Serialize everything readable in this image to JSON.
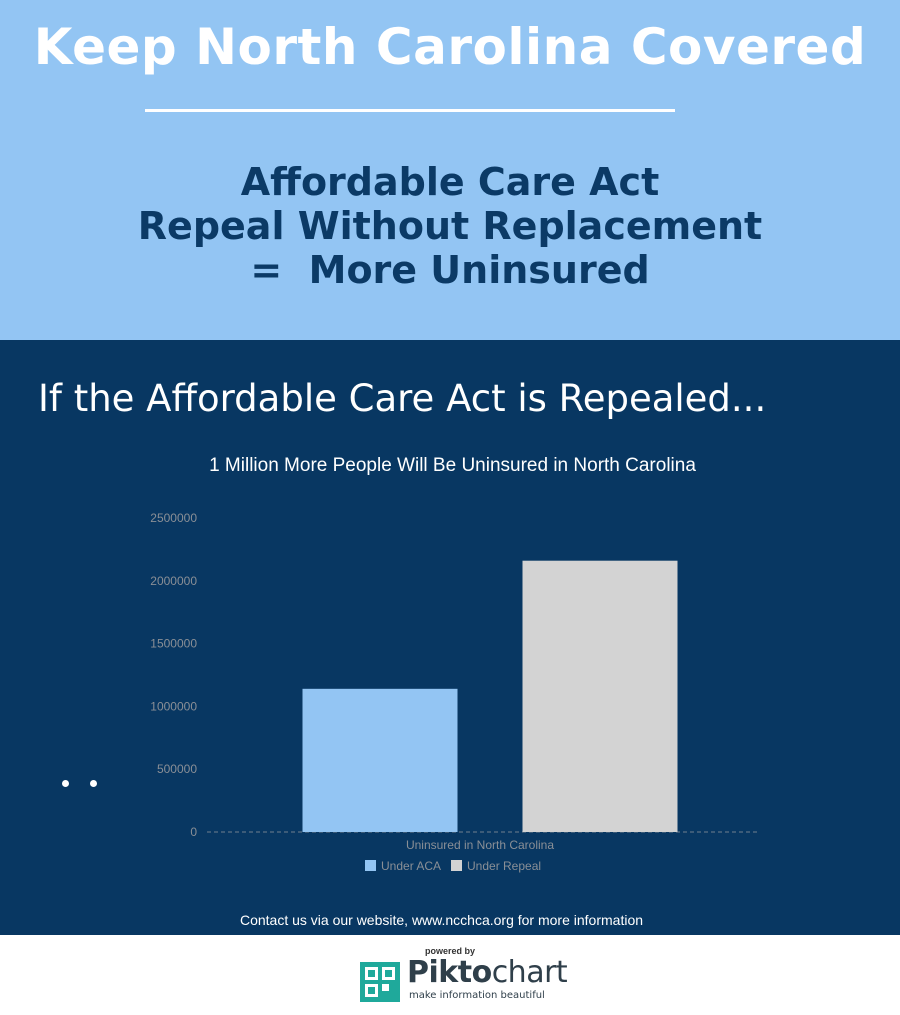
{
  "header": {
    "title": "Keep North Carolina Covered",
    "subtitle_lines": [
      "Affordable Care Act",
      "Repeal Without Replacement",
      "=  More Uninsured"
    ]
  },
  "section": {
    "heading": "If the Affordable Care Act is Repealed..."
  },
  "chart_data": {
    "type": "bar",
    "title": "1 Million More People Will Be Uninsured in North Carolina",
    "categories": [
      "Uninsured in North Carolina"
    ],
    "series": [
      {
        "name": "Under ACA",
        "values": [
          1140000
        ],
        "color": "#93c5f3"
      },
      {
        "name": "Under Repeal",
        "values": [
          2160000
        ],
        "color": "#d3d3d3"
      }
    ],
    "ylim": [
      0,
      2500000
    ],
    "yticks": [
      "0",
      "500000",
      "1000000",
      "1500000",
      "2000000",
      "2500000"
    ],
    "grid": false,
    "legend": "bottom"
  },
  "footer": {
    "contact": "Contact us via our website, www.ncchca.org for more information",
    "powered_by": "powered by",
    "brand_bold": "Pikto",
    "brand_rest": "chart",
    "tagline": "make information beautiful"
  },
  "colors": {
    "top_bg": "#93c5f3",
    "main_bg": "#083762",
    "subtitle": "#0b3a66"
  }
}
